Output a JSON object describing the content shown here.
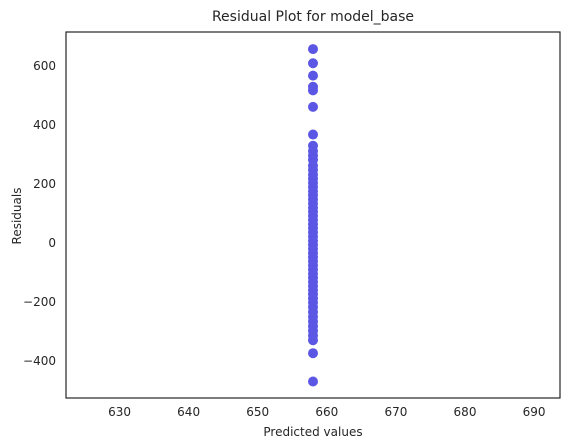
{
  "chart_data": {
    "type": "scatter",
    "title": "Residual Plot for model_base",
    "xlabel": "Predicted values",
    "ylabel": "Residuals",
    "xlim": [
      622.25,
      693.75
    ],
    "ylim": [
      -526,
      716
    ],
    "xticks": [
      630,
      640,
      650,
      660,
      670,
      680,
      690
    ],
    "yticks": [
      -400,
      -200,
      0,
      200,
      400,
      600
    ],
    "grid": false,
    "marker_color": "#5b57e4",
    "series": [
      {
        "points": [
          {
            "x": 658,
            "y": 658
          },
          {
            "x": 658,
            "y": 610
          },
          {
            "x": 658,
            "y": 568
          },
          {
            "x": 658,
            "y": 530
          },
          {
            "x": 658,
            "y": 518
          },
          {
            "x": 658,
            "y": 462
          },
          {
            "x": 658,
            "y": 368
          },
          {
            "x": 658,
            "y": 330
          },
          {
            "x": 658,
            "y": 312
          },
          {
            "x": 658,
            "y": 296
          },
          {
            "x": 658,
            "y": 282
          },
          {
            "x": 658,
            "y": 262
          },
          {
            "x": 658,
            "y": 248
          },
          {
            "x": 658,
            "y": 232
          },
          {
            "x": 658,
            "y": 218
          },
          {
            "x": 658,
            "y": 204
          },
          {
            "x": 658,
            "y": 190
          },
          {
            "x": 658,
            "y": 176
          },
          {
            "x": 658,
            "y": 162
          },
          {
            "x": 658,
            "y": 148
          },
          {
            "x": 658,
            "y": 134
          },
          {
            "x": 658,
            "y": 120
          },
          {
            "x": 658,
            "y": 106
          },
          {
            "x": 658,
            "y": 92
          },
          {
            "x": 658,
            "y": 78
          },
          {
            "x": 658,
            "y": 64
          },
          {
            "x": 658,
            "y": 50
          },
          {
            "x": 658,
            "y": 36
          },
          {
            "x": 658,
            "y": 22
          },
          {
            "x": 658,
            "y": 8
          },
          {
            "x": 658,
            "y": -6
          },
          {
            "x": 658,
            "y": -20
          },
          {
            "x": 658,
            "y": -34
          },
          {
            "x": 658,
            "y": -48
          },
          {
            "x": 658,
            "y": -62
          },
          {
            "x": 658,
            "y": -76
          },
          {
            "x": 658,
            "y": -90
          },
          {
            "x": 658,
            "y": -104
          },
          {
            "x": 658,
            "y": -118
          },
          {
            "x": 658,
            "y": -132
          },
          {
            "x": 658,
            "y": -146
          },
          {
            "x": 658,
            "y": -160
          },
          {
            "x": 658,
            "y": -174
          },
          {
            "x": 658,
            "y": -188
          },
          {
            "x": 658,
            "y": -202
          },
          {
            "x": 658,
            "y": -218
          },
          {
            "x": 658,
            "y": -234
          },
          {
            "x": 658,
            "y": -250
          },
          {
            "x": 658,
            "y": -266
          },
          {
            "x": 658,
            "y": -282
          },
          {
            "x": 658,
            "y": -298
          },
          {
            "x": 658,
            "y": -314
          },
          {
            "x": 658,
            "y": -330
          },
          {
            "x": 658,
            "y": -374
          },
          {
            "x": 658,
            "y": -470
          }
        ]
      }
    ]
  }
}
